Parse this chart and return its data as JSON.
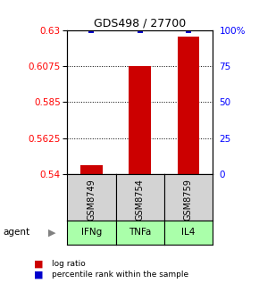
{
  "title": "GDS498 / 27700",
  "ylim_left": [
    0.54,
    0.63
  ],
  "ylim_right": [
    0,
    100
  ],
  "yticks_left": [
    0.54,
    0.5625,
    0.585,
    0.6075,
    0.63
  ],
  "yticks_right": [
    0,
    25,
    50,
    75,
    100
  ],
  "ytick_labels_left": [
    "0.54",
    "0.5625",
    "0.585",
    "0.6075",
    "0.63"
  ],
  "ytick_labels_right": [
    "0",
    "25",
    "50",
    "75",
    "100%"
  ],
  "categories": [
    1,
    2,
    3
  ],
  "bar_values": [
    0.5455,
    0.6075,
    0.626
  ],
  "bar_base": 0.54,
  "bar_color": "#cc0000",
  "bar_width": 0.45,
  "percentile_values": [
    100,
    100,
    100
  ],
  "percentile_color": "#0000cc",
  "percentile_marker": "s",
  "percentile_size": 18,
  "gsm_labels": [
    "GSM8749",
    "GSM8754",
    "GSM8759"
  ],
  "agent_labels": [
    "IFNg",
    "TNFa",
    "IL4"
  ],
  "agent_color": "#aaffaa",
  "gsm_color": "#d3d3d3",
  "legend_items": [
    {
      "label": "log ratio",
      "color": "#cc0000"
    },
    {
      "label": "percentile rank within the sample",
      "color": "#0000cc"
    }
  ],
  "grid_yticks": [
    0.5625,
    0.585,
    0.6075
  ],
  "figsize": [
    2.9,
    3.36
  ],
  "dpi": 100
}
